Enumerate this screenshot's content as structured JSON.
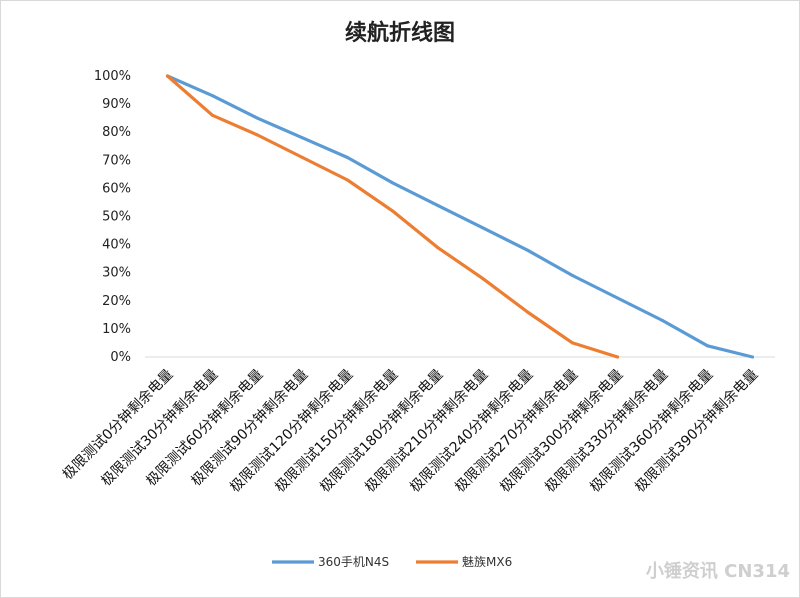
{
  "chart_data": {
    "type": "line",
    "title": "续航折线图",
    "categories": [
      "极限测试0分钟剩余电量",
      "极限测试30分钟剩余电量",
      "极限测试60分钟剩余电量",
      "极限测试90分钟剩余电量",
      "极限测试120分钟剩余电量",
      "极限测试150分钟剩余电量",
      "极限测试180分钟剩余电量",
      "极限测试210分钟剩余电量",
      "极限测试240分钟剩余电量",
      "极限测试270分钟剩余电量",
      "极限测试300分钟剩余电量",
      "极限测试330分钟剩余电量",
      "极限测试360分钟剩余电量",
      "极限测试390分钟剩余电量"
    ],
    "series": [
      {
        "name": "360手机N4S",
        "color": "#5B9BD5",
        "values": [
          100,
          93,
          85,
          78,
          71,
          62,
          54,
          46,
          38,
          29,
          21,
          13,
          4,
          0
        ]
      },
      {
        "name": "魅族MX6",
        "color": "#ED7D31",
        "values": [
          100,
          86,
          79,
          71,
          63,
          52,
          39,
          28,
          16,
          5,
          0,
          null,
          null,
          null
        ]
      }
    ],
    "ylim": [
      0,
      100
    ],
    "yticks": [
      "0%",
      "10%",
      "20%",
      "30%",
      "40%",
      "50%",
      "60%",
      "70%",
      "80%",
      "90%",
      "100%"
    ],
    "grid": false,
    "legend": "bottom"
  },
  "watermark": "小锤资讯 CN314"
}
